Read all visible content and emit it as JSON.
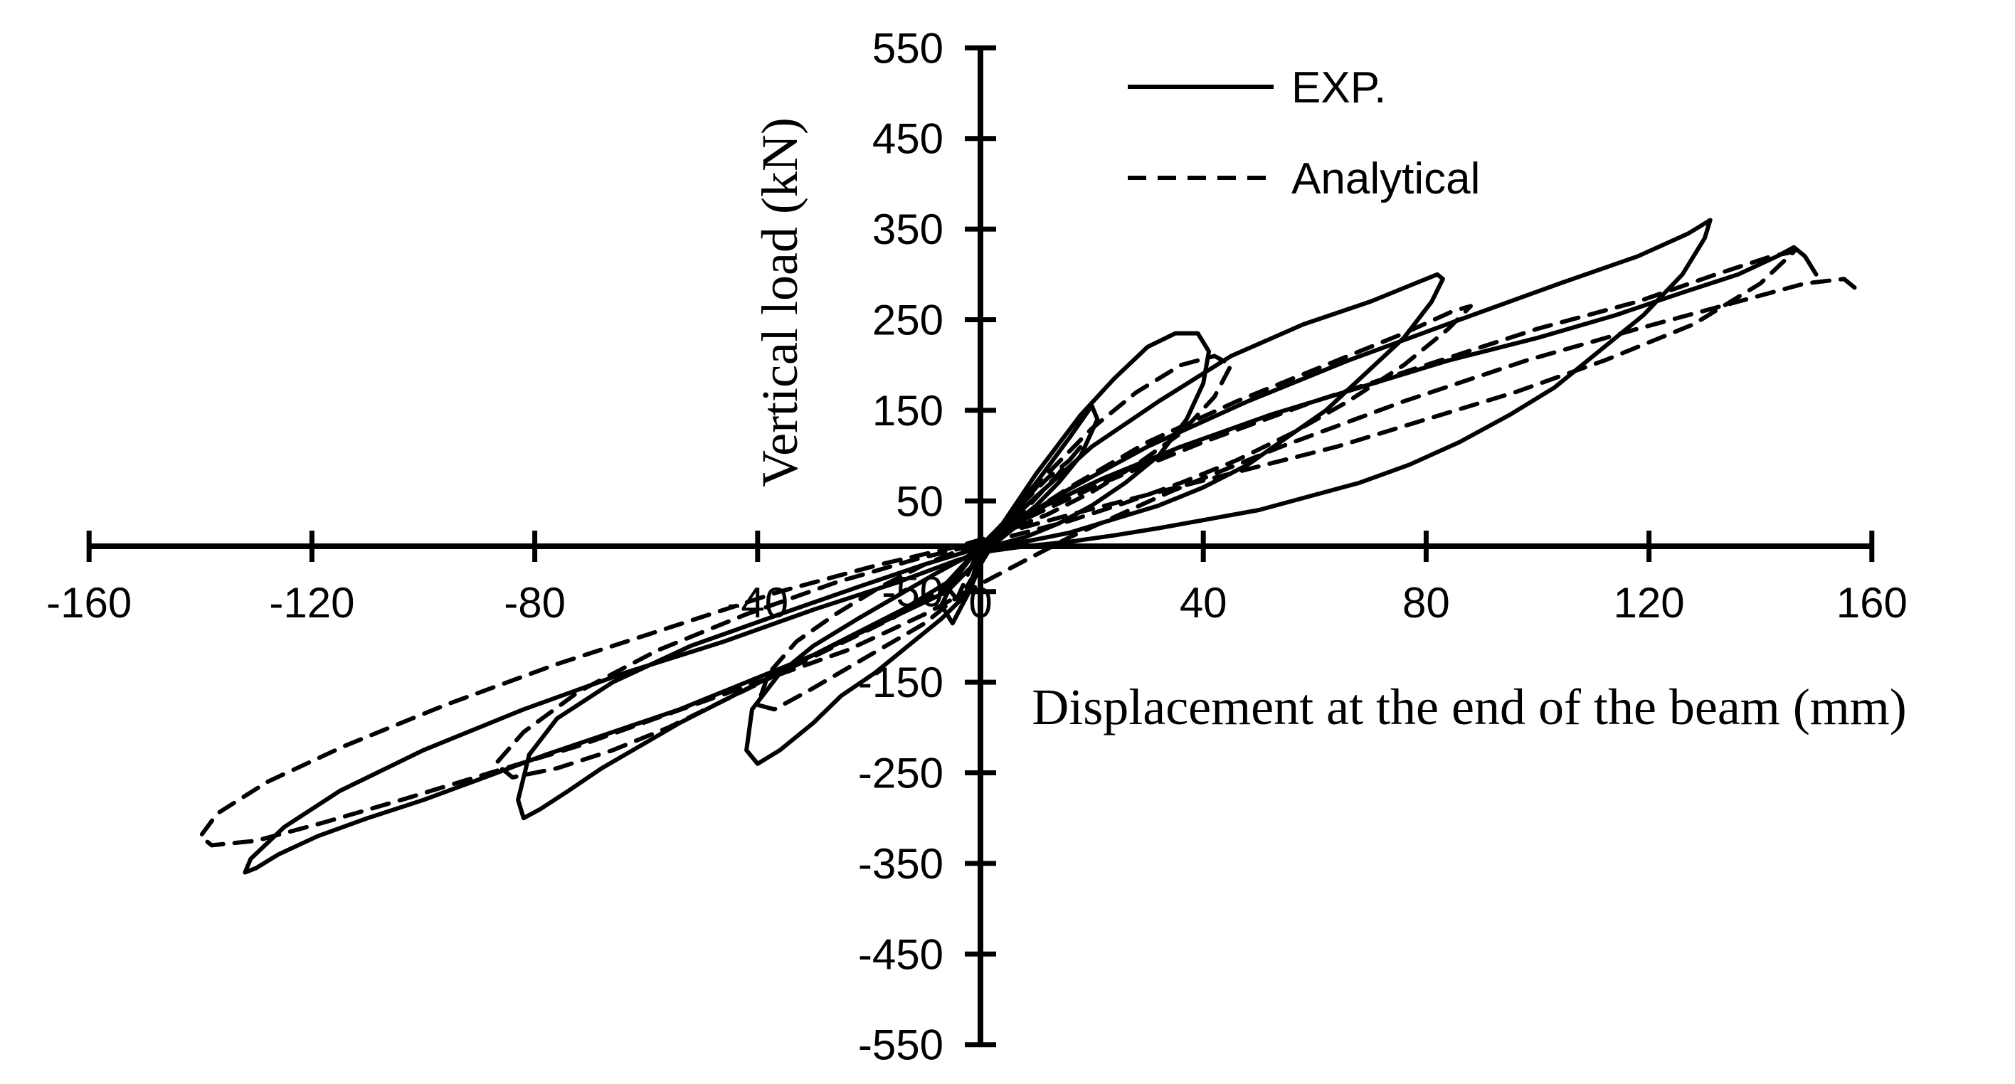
{
  "chart_data": {
    "type": "line",
    "xlabel": "Displacement at the end of the beam (mm)",
    "ylabel": "Vertical load (kN)",
    "xlim": [
      -160,
      160
    ],
    "ylim": [
      -550,
      550
    ],
    "xticks": [
      "-160",
      "-120",
      "-80",
      "-40",
      "0",
      "40",
      "80",
      "120",
      "160"
    ],
    "xtick_values": [
      -160,
      -120,
      -80,
      -40,
      0,
      40,
      80,
      120,
      160
    ],
    "yticks": [
      "550",
      "450",
      "350",
      "250",
      "150",
      "50",
      "-50",
      "-150",
      "-250",
      "-350",
      "-450",
      "-550"
    ],
    "ytick_values": [
      550,
      450,
      350,
      250,
      150,
      50,
      -50,
      -150,
      -250,
      -350,
      -450,
      -550
    ],
    "grid": false,
    "legend_position": "top-right",
    "series": [
      {
        "name": "EXP.",
        "style": "solid",
        "color": "#000000",
        "x": [
          0,
          5,
          10,
          14,
          18,
          21,
          20,
          16,
          10,
          4,
          0,
          -2,
          -5,
          -7,
          -5,
          -2,
          0,
          4,
          10,
          18,
          24,
          30,
          35,
          39,
          41,
          40,
          37,
          32,
          26,
          20,
          14,
          8,
          2,
          -2,
          -8,
          -15,
          -22,
          -30,
          -36,
          -41,
          -42,
          -40,
          -36,
          -30,
          -25,
          -19,
          -13,
          -7,
          -2,
          0,
          4,
          10,
          20,
          32,
          45,
          58,
          70,
          78,
          82,
          83,
          81,
          76,
          69,
          62,
          55,
          48,
          40,
          32,
          24,
          16,
          8,
          2,
          -2,
          -10,
          -22,
          -36,
          -52,
          -66,
          -76,
          -81,
          -83,
          -82,
          -79,
          -74,
          -68,
          -61,
          -54,
          -46,
          -38,
          -30,
          -22,
          -14,
          -6,
          0,
          6,
          15,
          30,
          48,
          66,
          86,
          104,
          118,
          127,
          131,
          130,
          126,
          119,
          111,
          103,
          95,
          86,
          77,
          68,
          59,
          50,
          41,
          32,
          24,
          16,
          8,
          2,
          -4,
          -15,
          -30,
          -46,
          -64,
          -82,
          -100,
          -115,
          -125,
          -131,
          -132,
          -130,
          -126,
          -119,
          -110,
          -100,
          -89,
          -78,
          -66,
          -54,
          -42,
          -30,
          -18,
          -6,
          2,
          10,
          22,
          36,
          52,
          68,
          84,
          100,
          114,
          126,
          136,
          143,
          146,
          148,
          150
        ],
        "y": [
          0,
          20,
          45,
          70,
          100,
          140,
          155,
          120,
          70,
          25,
          0,
          -15,
          -40,
          -65,
          -85,
          -50,
          -20,
          25,
          80,
          145,
          185,
          220,
          235,
          235,
          215,
          180,
          140,
          100,
          70,
          45,
          25,
          10,
          0,
          -10,
          -30,
          -55,
          -80,
          -110,
          -140,
          -180,
          -225,
          -240,
          -225,
          -195,
          -165,
          -140,
          -110,
          -80,
          -50,
          0,
          20,
          55,
          110,
          160,
          210,
          245,
          270,
          290,
          300,
          295,
          270,
          230,
          190,
          150,
          120,
          90,
          65,
          45,
          30,
          15,
          5,
          0,
          -5,
          -20,
          -45,
          -75,
          -110,
          -150,
          -190,
          -230,
          -280,
          -300,
          -290,
          -270,
          -245,
          -220,
          -195,
          -170,
          -145,
          -120,
          -95,
          -70,
          -40,
          0,
          25,
          60,
          110,
          160,
          205,
          250,
          290,
          320,
          345,
          360,
          340,
          300,
          255,
          215,
          175,
          145,
          115,
          90,
          70,
          55,
          40,
          30,
          20,
          12,
          5,
          0,
          -5,
          -15,
          -40,
          -70,
          -105,
          -140,
          -180,
          -225,
          -270,
          -310,
          -345,
          -360,
          -355,
          -340,
          -320,
          -300,
          -280,
          -255,
          -230,
          -205,
          -180,
          -150,
          -120,
          -85,
          -50,
          0,
          40,
          75,
          110,
          145,
          175,
          205,
          230,
          255,
          280,
          300,
          320,
          330,
          320,
          300
        ]
      },
      {
        "name": "Analytical",
        "style": "dashed",
        "color": "#000000",
        "x": [
          0,
          4,
          8,
          12,
          16,
          18,
          14,
          8,
          3,
          0,
          -3,
          -6,
          -4,
          -1,
          2,
          6,
          12,
          20,
          28,
          36,
          42,
          45,
          42,
          36,
          28,
          20,
          12,
          4,
          -2,
          -10,
          -18,
          -26,
          -33,
          -38,
          -40,
          -37,
          -31,
          -24,
          -17,
          -10,
          -4,
          0,
          6,
          16,
          30,
          46,
          62,
          76,
          85,
          88,
          84,
          76,
          66,
          56,
          46,
          36,
          26,
          16,
          6,
          -2,
          -12,
          -26,
          -42,
          -58,
          -72,
          -82,
          -87,
          -84,
          -76,
          -66,
          -56,
          -46,
          -36,
          -26,
          -16,
          -6,
          0,
          8,
          22,
          40,
          60,
          80,
          100,
          118,
          132,
          142,
          146,
          140,
          128,
          112,
          96,
          80,
          64,
          48,
          32,
          18,
          6,
          -4,
          -18,
          -36,
          -56,
          -76,
          -96,
          -114,
          -128,
          -137,
          -140,
          -138,
          -130,
          -118,
          -104,
          -88,
          -72,
          -56,
          -40,
          -24,
          -10,
          2,
          16,
          34,
          54,
          76,
          98,
          118,
          136,
          148,
          155,
          158
        ],
        "y": [
          0,
          25,
          50,
          75,
          95,
          110,
          80,
          40,
          10,
          0,
          -20,
          -45,
          -60,
          -30,
          0,
          35,
          80,
          130,
          170,
          200,
          210,
          200,
          165,
          125,
          90,
          60,
          35,
          15,
          0,
          -20,
          -45,
          -75,
          -105,
          -140,
          -175,
          -180,
          -160,
          -135,
          -110,
          -85,
          -55,
          0,
          25,
          65,
          115,
          160,
          200,
          235,
          260,
          265,
          240,
          200,
          160,
          125,
          95,
          70,
          48,
          28,
          12,
          0,
          -15,
          -40,
          -75,
          -115,
          -160,
          -205,
          -240,
          -255,
          -245,
          -225,
          -200,
          -170,
          -140,
          -110,
          -80,
          -45,
          0,
          30,
          70,
          115,
          160,
          200,
          240,
          270,
          300,
          320,
          325,
          290,
          245,
          205,
          170,
          140,
          110,
          85,
          60,
          38,
          18,
          0,
          -20,
          -50,
          -90,
          -130,
          -175,
          -220,
          -260,
          -295,
          -320,
          -330,
          -325,
          -305,
          -280,
          -250,
          -220,
          -185,
          -150,
          -115,
          -75,
          -35,
          10,
          60,
          110,
          160,
          205,
          240,
          270,
          290,
          295,
          280
        ]
      }
    ]
  }
}
